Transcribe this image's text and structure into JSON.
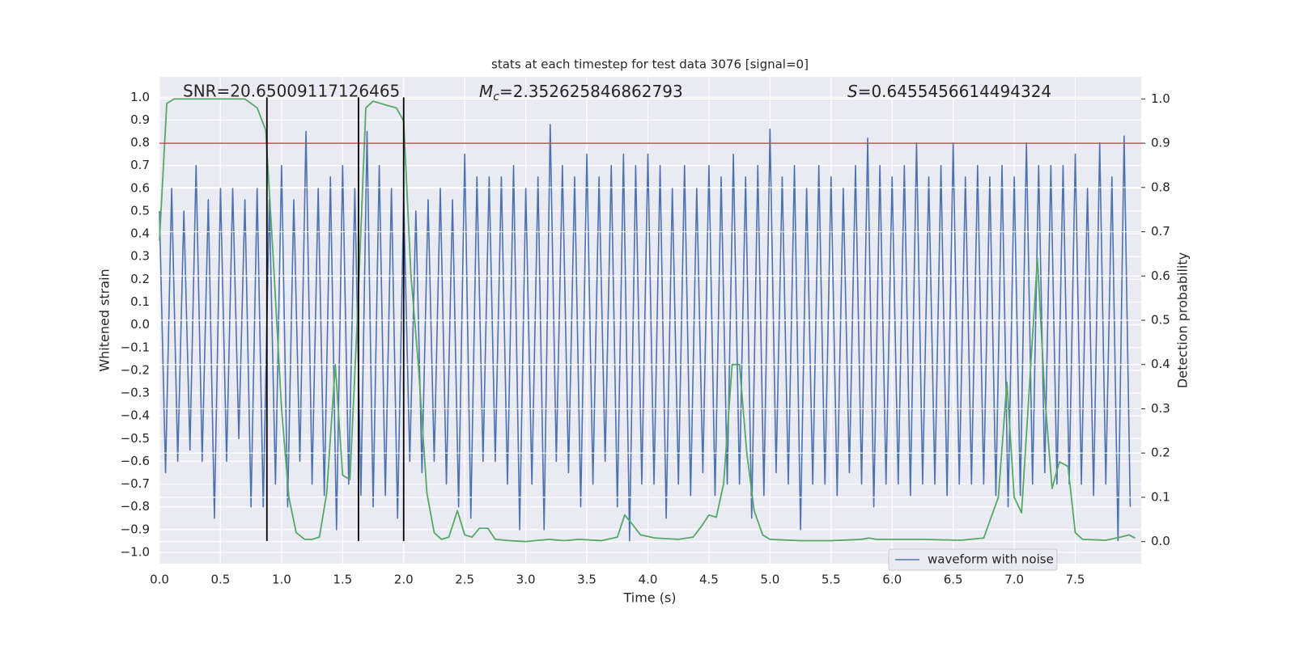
{
  "chart_data": {
    "type": "line",
    "title": "stats at each timestep for test data 3076 [signal=0]",
    "xlabel": "Time (s)",
    "ylabel": "Whitened strain",
    "y2label": "Detection probability",
    "xlim": [
      0,
      8.04
    ],
    "ylim": [
      -1.05,
      1.09
    ],
    "y2lim": [
      -0.05,
      1.05
    ],
    "grid": true,
    "legend": "lower right",
    "xticks": [
      {
        "value": 0,
        "label": "0.0"
      },
      {
        "value": 0.5,
        "label": "0.5"
      },
      {
        "value": 1,
        "label": "1.0"
      },
      {
        "value": 1.5,
        "label": "1.5"
      },
      {
        "value": 2,
        "label": "2.0"
      },
      {
        "value": 2.5,
        "label": "2.5"
      },
      {
        "value": 3,
        "label": "3.0"
      },
      {
        "value": 3.5,
        "label": "3.5"
      },
      {
        "value": 4,
        "label": "4.0"
      },
      {
        "value": 4.5,
        "label": "4.5"
      },
      {
        "value": 5,
        "label": "5.0"
      },
      {
        "value": 5.5,
        "label": "5.5"
      },
      {
        "value": 6,
        "label": "6.0"
      },
      {
        "value": 6.5,
        "label": "6.5"
      },
      {
        "value": 7,
        "label": "7.0"
      },
      {
        "value": 7.5,
        "label": "7.5"
      }
    ],
    "yticks": [
      {
        "value": -1,
        "label": "−1.0"
      },
      {
        "value": -0.9,
        "label": "−0.9"
      },
      {
        "value": -0.8,
        "label": "−0.8"
      },
      {
        "value": -0.7,
        "label": "−0.7"
      },
      {
        "value": -0.6,
        "label": "−0.6"
      },
      {
        "value": -0.5,
        "label": "−0.5"
      },
      {
        "value": -0.4,
        "label": "−0.4"
      },
      {
        "value": -0.3,
        "label": "−0.3"
      },
      {
        "value": -0.2,
        "label": "−0.2"
      },
      {
        "value": -0.1,
        "label": "−0.1"
      },
      {
        "value": 0,
        "label": "0.0"
      },
      {
        "value": 0.1,
        "label": "0.1"
      },
      {
        "value": 0.2,
        "label": "0.2"
      },
      {
        "value": 0.3,
        "label": "0.3"
      },
      {
        "value": 0.4,
        "label": "0.4"
      },
      {
        "value": 0.5,
        "label": "0.5"
      },
      {
        "value": 0.6,
        "label": "0.6"
      },
      {
        "value": 0.7,
        "label": "0.7"
      },
      {
        "value": 0.8,
        "label": "0.8"
      },
      {
        "value": 0.9,
        "label": "0.9"
      },
      {
        "value": 1,
        "label": "1.0"
      }
    ],
    "y2ticks": [
      {
        "value": 0,
        "label": "0.0"
      },
      {
        "value": 0.1,
        "label": "0.1"
      },
      {
        "value": 0.2,
        "label": "0.2"
      },
      {
        "value": 0.3,
        "label": "0.3"
      },
      {
        "value": 0.4,
        "label": "0.4"
      },
      {
        "value": 0.5,
        "label": "0.5"
      },
      {
        "value": 0.6,
        "label": "0.6"
      },
      {
        "value": 0.7,
        "label": "0.7"
      },
      {
        "value": 0.8,
        "label": "0.8"
      },
      {
        "value": 0.9,
        "label": "0.9"
      },
      {
        "value": 1,
        "label": "1.0"
      }
    ],
    "annotations": [
      {
        "text": "SNR=20.65009117126465"
      },
      {
        "symbol": "M",
        "subscript": "c",
        "text": "=2.352625846862793"
      },
      {
        "symbol": "S",
        "text": "=0.6455456614494324"
      }
    ],
    "hline": {
      "y": 0.9,
      "axis": "y2",
      "color": "#c44e52"
    },
    "vlines": {
      "x": [
        0.88,
        1.63,
        2.0
      ],
      "ymin": -0.95,
      "ymax": 1.0,
      "color": "#000000"
    },
    "series": [
      {
        "name": "waveform with noise",
        "color": "#4c72b0",
        "x": [
          0,
          0.05,
          0.1,
          0.15,
          0.2,
          0.25,
          0.3,
          0.35,
          0.4,
          0.45,
          0.5,
          0.55,
          0.6,
          0.65,
          0.7,
          0.75,
          0.8,
          0.85,
          0.9,
          0.95,
          1,
          1.05,
          1.1,
          1.15,
          1.2,
          1.25,
          1.3,
          1.35,
          1.4,
          1.45,
          1.5,
          1.55,
          1.6,
          1.65,
          1.7,
          1.75,
          1.8,
          1.85,
          1.9,
          1.95,
          2,
          2.05,
          2.1,
          2.15,
          2.2,
          2.25,
          2.3,
          2.35,
          2.4,
          2.45,
          2.5,
          2.55,
          2.6,
          2.65,
          2.7,
          2.75,
          2.8,
          2.85,
          2.9,
          2.95,
          3,
          3.05,
          3.1,
          3.15,
          3.2,
          3.25,
          3.3,
          3.35,
          3.4,
          3.45,
          3.5,
          3.55,
          3.6,
          3.65,
          3.7,
          3.75,
          3.8,
          3.85,
          3.9,
          3.95,
          4,
          4.05,
          4.1,
          4.15,
          4.2,
          4.25,
          4.3,
          4.35,
          4.4,
          4.45,
          4.5,
          4.55,
          4.6,
          4.65,
          4.7,
          4.75,
          4.8,
          4.85,
          4.9,
          4.95,
          5,
          5.05,
          5.1,
          5.15,
          5.2,
          5.25,
          5.3,
          5.35,
          5.4,
          5.45,
          5.5,
          5.55,
          5.6,
          5.65,
          5.7,
          5.75,
          5.8,
          5.85,
          5.9,
          5.95,
          6,
          6.05,
          6.1,
          6.15,
          6.2,
          6.25,
          6.3,
          6.35,
          6.4,
          6.45,
          6.5,
          6.55,
          6.6,
          6.65,
          6.7,
          6.75,
          6.8,
          6.85,
          6.9,
          6.95,
          7,
          7.05,
          7.1,
          7.15,
          7.2,
          7.25,
          7.3,
          7.35,
          7.4,
          7.45,
          7.5,
          7.55,
          7.6,
          7.65,
          7.7,
          7.75,
          7.8,
          7.85,
          7.9,
          7.95
        ],
        "values": [
          0.5,
          -0.65,
          0.6,
          -0.6,
          0.5,
          -0.55,
          0.7,
          -0.6,
          0.55,
          -0.85,
          0.6,
          -0.6,
          0.6,
          -0.5,
          0.55,
          -0.8,
          0.6,
          -0.8,
          0.55,
          -0.7,
          0.7,
          -0.8,
          0.55,
          -0.6,
          0.85,
          -0.7,
          0.6,
          -0.75,
          0.65,
          -0.9,
          0.7,
          -0.7,
          0.6,
          -0.75,
          0.85,
          -0.8,
          0.7,
          -0.75,
          0.6,
          -0.85,
          0.55,
          -0.6,
          0.5,
          -0.65,
          0.55,
          -0.6,
          0.6,
          -0.7,
          0.55,
          -0.8,
          0.75,
          -0.85,
          0.65,
          -0.6,
          0.65,
          -0.6,
          0.65,
          -0.7,
          0.7,
          -0.9,
          0.6,
          -0.7,
          0.65,
          -0.9,
          0.88,
          -0.6,
          0.7,
          -0.65,
          0.65,
          -0.8,
          0.75,
          -0.7,
          0.65,
          -0.6,
          0.7,
          -0.8,
          0.75,
          -0.95,
          0.7,
          -0.7,
          0.75,
          -0.7,
          0.7,
          -0.85,
          0.6,
          -0.7,
          0.7,
          -0.75,
          0.6,
          -0.65,
          0.7,
          -0.75,
          0.65,
          -0.7,
          0.75,
          -0.7,
          0.65,
          -0.85,
          0.7,
          -0.75,
          0.86,
          -0.65,
          0.65,
          -0.7,
          0.7,
          -0.9,
          0.6,
          -0.7,
          0.7,
          -0.7,
          0.65,
          -0.75,
          0.6,
          -0.65,
          0.7,
          -0.7,
          0.82,
          -0.8,
          0.7,
          -0.7,
          0.65,
          -0.7,
          0.7,
          -0.75,
          0.8,
          -0.7,
          0.65,
          -0.7,
          0.7,
          -0.75,
          0.8,
          -0.7,
          0.65,
          -0.7,
          0.7,
          -0.7,
          0.65,
          -0.75,
          0.7,
          -0.8,
          0.65,
          -0.75,
          0.8,
          -0.7,
          0.7,
          -0.65,
          0.7,
          -0.7,
          0.7,
          -0.7,
          0.75,
          -0.7,
          0.6,
          -0.75,
          0.8,
          -0.7,
          0.65,
          -0.95,
          0.83,
          -0.8
        ]
      },
      {
        "color": "#55a868",
        "axis": "y2",
        "x": [
          0,
          0.06,
          0.12,
          0.25,
          0.5,
          0.7,
          0.8,
          0.87,
          0.93,
          1,
          1.06,
          1.12,
          1.19,
          1.25,
          1.31,
          1.37,
          1.44,
          1.5,
          1.56,
          1.62,
          1.69,
          1.75,
          1.87,
          1.94,
          2,
          2.06,
          2.12,
          2.19,
          2.25,
          2.31,
          2.37,
          2.44,
          2.5,
          2.56,
          2.62,
          2.69,
          2.75,
          2.87,
          3,
          3.19,
          3.31,
          3.44,
          3.62,
          3.75,
          3.81,
          3.87,
          3.94,
          4.06,
          4.25,
          4.37,
          4.44,
          4.5,
          4.56,
          4.62,
          4.69,
          4.75,
          4.81,
          4.87,
          4.94,
          5,
          5.25,
          5.5,
          5.75,
          5.81,
          5.87,
          6.12,
          6.25,
          6.56,
          6.75,
          6.87,
          6.94,
          7,
          7.06,
          7.12,
          7.19,
          7.25,
          7.31,
          7.37,
          7.44,
          7.5,
          7.56,
          7.75,
          7.87,
          7.94,
          7.99
        ],
        "values": [
          0.68,
          0.99,
          1.0,
          1.0,
          1.0,
          1.0,
          0.98,
          0.93,
          0.65,
          0.3,
          0.1,
          0.02,
          0.005,
          0.005,
          0.01,
          0.11,
          0.4,
          0.15,
          0.14,
          0.5,
          0.98,
          0.995,
          0.985,
          0.98,
          0.95,
          0.6,
          0.4,
          0.11,
          0.02,
          0.005,
          0.01,
          0.07,
          0.015,
          0.01,
          0.03,
          0.03,
          0.005,
          0.002,
          0.0,
          0.005,
          0.002,
          0.005,
          0.002,
          0.01,
          0.06,
          0.04,
          0.015,
          0.008,
          0.005,
          0.01,
          0.035,
          0.06,
          0.055,
          0.13,
          0.4,
          0.4,
          0.2,
          0.07,
          0.015,
          0.005,
          0.002,
          0.002,
          0.005,
          0.008,
          0.005,
          0.005,
          0.005,
          0.003,
          0.008,
          0.1,
          0.36,
          0.1,
          0.065,
          0.33,
          0.64,
          0.33,
          0.12,
          0.18,
          0.17,
          0.02,
          0.005,
          0.003,
          0.01,
          0.015,
          0.008
        ]
      }
    ]
  }
}
